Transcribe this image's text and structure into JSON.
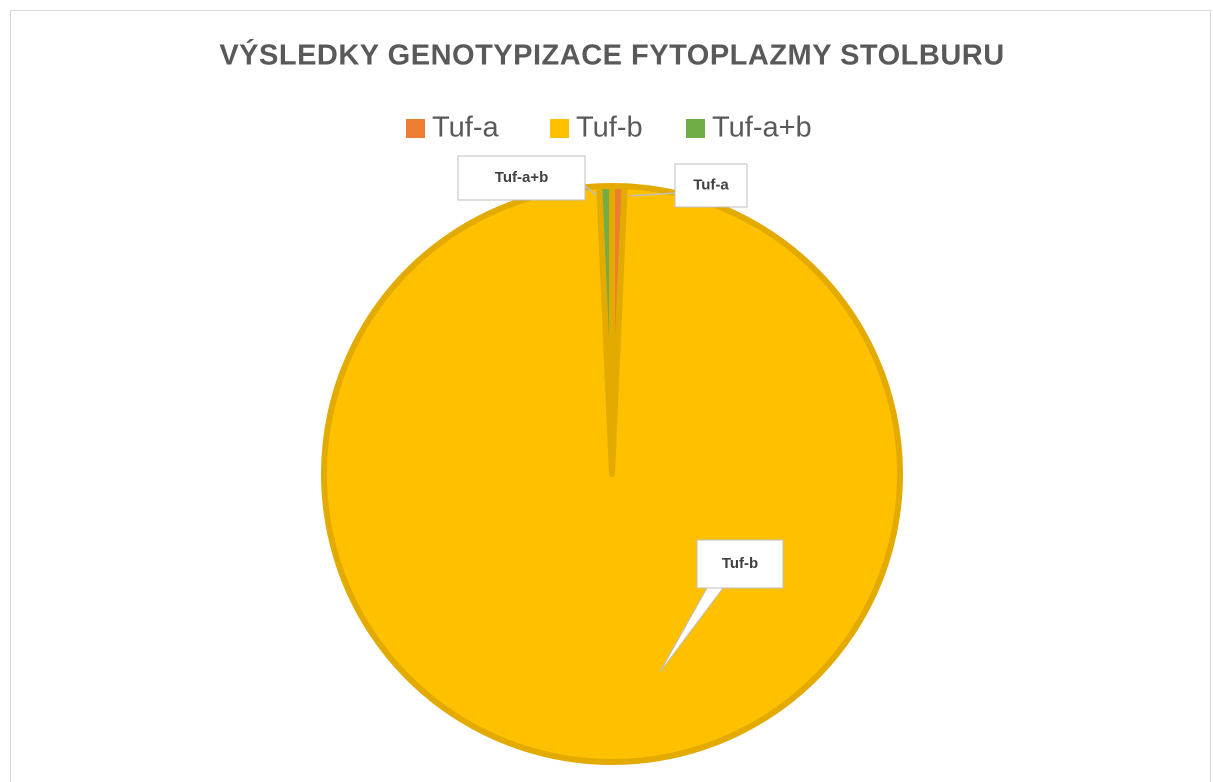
{
  "chart_data": {
    "type": "pie",
    "title": "VÝSLEDKY GENOTYPIZACE FYTOPLAZMY STOLBURU",
    "categories": [
      "Tuf-a",
      "Tuf-b",
      "Tuf-a+b"
    ],
    "values": [
      0.7,
      98.6,
      0.7
    ],
    "colors": [
      "#ed7d31",
      "#ffc000",
      "#70ad47"
    ],
    "legend": "top"
  }
}
